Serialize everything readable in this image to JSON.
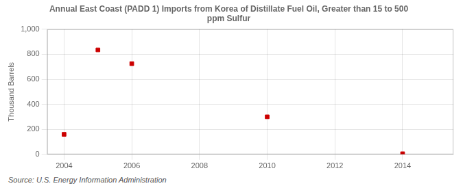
{
  "chart_data": {
    "type": "scatter",
    "title": "Annual East Coast (PADD 1) Imports from Korea of Distillate Fuel Oil, Greater than 15 to 500\nppm Sulfur",
    "ylabel": "Thousand Barrels",
    "source": "Source: U.S. Energy Information Administration",
    "x": [
      2004,
      2005,
      2006,
      2010,
      2014
    ],
    "values": [
      160,
      835,
      725,
      300,
      5
    ],
    "color": "#cc0000",
    "marker": "square",
    "xlim": [
      2003.5,
      2015.5
    ],
    "ylim": [
      0,
      1000
    ],
    "xticks": [
      2004,
      2006,
      2008,
      2010,
      2012,
      2014
    ],
    "yticks": [
      0,
      200,
      400,
      600,
      800,
      {
        "value": 1000,
        "label": "1,000"
      }
    ],
    "grid": true
  }
}
